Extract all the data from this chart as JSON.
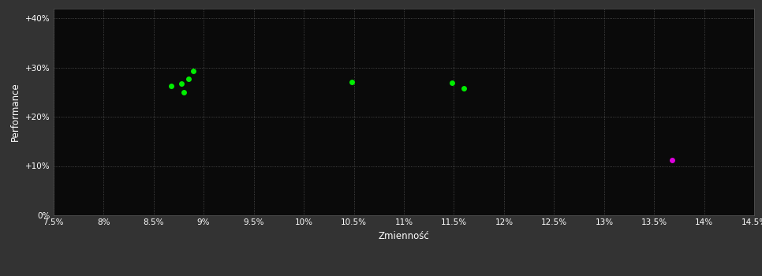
{
  "background_color": "#333333",
  "plot_bg_color": "#0a0a0a",
  "grid_color": "#555555",
  "text_color": "#ffffff",
  "xlabel": "Zmienność",
  "ylabel": "Performance",
  "xlim": [
    0.075,
    0.145
  ],
  "ylim": [
    0.0,
    0.42
  ],
  "xticks": [
    0.075,
    0.08,
    0.085,
    0.09,
    0.095,
    0.1,
    0.105,
    0.11,
    0.115,
    0.12,
    0.125,
    0.13,
    0.135,
    0.14,
    0.145
  ],
  "yticks": [
    0.0,
    0.1,
    0.2,
    0.3,
    0.4
  ],
  "ytick_labels": [
    "0%",
    "+10%",
    "+20%",
    "+30%",
    "+40%"
  ],
  "xtick_labels": [
    "7.5%",
    "8%",
    "8.5%",
    "9%",
    "9.5%",
    "10%",
    "10.5%",
    "11%",
    "11.5%",
    "12%",
    "12.5%",
    "13%",
    "13.5%",
    "14%",
    "14.5%"
  ],
  "green_points": [
    [
      0.089,
      0.293
    ],
    [
      0.0885,
      0.277
    ],
    [
      0.0878,
      0.268
    ],
    [
      0.0868,
      0.263
    ],
    [
      0.088,
      0.249
    ],
    [
      0.1048,
      0.271
    ],
    [
      0.1148,
      0.269
    ],
    [
      0.116,
      0.258
    ]
  ],
  "magenta_points": [
    [
      0.1368,
      0.112
    ]
  ],
  "green_color": "#00ee00",
  "magenta_color": "#dd00dd",
  "marker_size": 5,
  "tick_fontsize": 7.5,
  "label_fontsize": 8.5
}
